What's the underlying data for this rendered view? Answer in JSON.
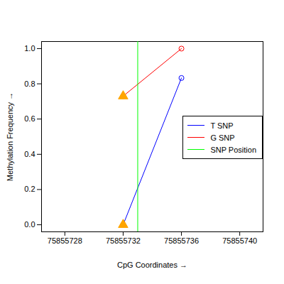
{
  "chart_data": {
    "type": "line",
    "x_label": "CpG Coordinates",
    "y_label": "Methylation Frequency",
    "x": [
      75855732,
      75855736
    ],
    "xlim": [
      75855726.4,
      75855741.6
    ],
    "xticks": [
      75855728,
      75855732,
      75855736,
      75855740
    ],
    "ylim": [
      -0.04,
      1.04
    ],
    "yticks": [
      {
        "value": 0,
        "label": "0.0"
      },
      0.2,
      0.4,
      0.6,
      0.8,
      {
        "value": 1,
        "label": "1.0"
      }
    ],
    "legend": "right",
    "series": [
      {
        "name": "T SNP",
        "color": "#0000ff",
        "type": "line",
        "marker": "circle",
        "values": [
          0.0,
          0.833
        ]
      },
      {
        "name": "G SNP",
        "color": "#ff0000",
        "type": "line",
        "marker": "circle",
        "values": [
          0.73,
          1.0
        ]
      },
      {
        "name": "SNP Position",
        "color": "#00ff00",
        "type": "vline",
        "x": [
          75855733
        ]
      },
      {
        "type": "scatter",
        "color": "#ffa500",
        "marker": "triangle",
        "x": [
          75855732,
          75855732
        ],
        "values": [
          0.0,
          0.73
        ]
      }
    ]
  }
}
